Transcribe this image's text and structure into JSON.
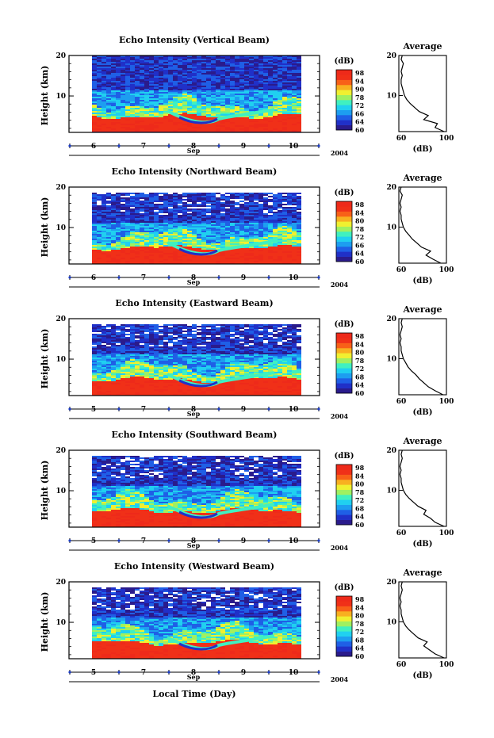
{
  "colors": {
    "palette": [
      "#2a1b8c",
      "#2030c8",
      "#1f5fe6",
      "#1d9ef0",
      "#20d0f0",
      "#40f0c0",
      "#a0f060",
      "#f0f030",
      "#f8b020",
      "#f86018",
      "#f03018",
      "#ee2a1a"
    ],
    "background_low": "#2a2a9a",
    "white": "#ffffff"
  },
  "icons": [
    "day-tick-marker-icon"
  ],
  "chart_data": [
    {
      "type": "heatmap",
      "title": "Echo Intensity (Vertical Beam)",
      "ylabel": "Height (km)",
      "yticks": [
        "20",
        "10"
      ],
      "ylim": [
        1,
        20
      ],
      "xticks": [
        "6",
        "7",
        "8",
        "9",
        "10"
      ],
      "xunit": "Sep",
      "year": "2004",
      "colorbar": {
        "unit": "(dB)",
        "labels": [
          "98",
          "94",
          "90",
          "78",
          "72",
          "66",
          "64",
          "60"
        ],
        "range": [
          60,
          98
        ]
      },
      "average": {
        "title": "Average",
        "xticks": [
          "60",
          "100"
        ],
        "xlabel": "(dB)",
        "yticks": [
          "20",
          "10"
        ],
        "profile": [
          [
            98,
            1
          ],
          [
            90,
            2
          ],
          [
            92,
            3
          ],
          [
            80,
            4
          ],
          [
            84,
            5
          ],
          [
            76,
            6
          ],
          [
            72,
            7
          ],
          [
            68,
            8
          ],
          [
            65,
            9
          ],
          [
            63,
            10
          ],
          [
            62,
            11
          ],
          [
            61,
            12
          ],
          [
            60,
            13
          ],
          [
            60,
            14
          ],
          [
            61,
            15
          ],
          [
            60,
            16
          ],
          [
            61,
            17
          ],
          [
            62,
            18
          ],
          [
            60,
            19
          ],
          [
            61,
            20
          ]
        ]
      }
    },
    {
      "type": "heatmap",
      "title": "Echo Intensity (Northward Beam)",
      "ylabel": "Height (km)",
      "yticks": [
        "20",
        "10"
      ],
      "ylim": [
        1,
        20
      ],
      "xticks": [
        "6",
        "7",
        "8",
        "9",
        "10"
      ],
      "xunit": "Sep",
      "year": "2004",
      "colorbar": {
        "unit": "(dB)",
        "labels": [
          "98",
          "84",
          "80",
          "78",
          "72",
          "66",
          "64",
          "60"
        ],
        "range": [
          60,
          98
        ]
      },
      "average": {
        "title": "Average",
        "xticks": [
          "60",
          "100"
        ],
        "xlabel": "(dB)",
        "yticks": [
          "20",
          "10"
        ],
        "profile": [
          [
            95,
            1
          ],
          [
            88,
            2
          ],
          [
            82,
            3
          ],
          [
            86,
            4
          ],
          [
            78,
            5
          ],
          [
            74,
            6
          ],
          [
            70,
            7
          ],
          [
            67,
            8
          ],
          [
            64,
            9
          ],
          [
            62,
            10
          ],
          [
            61,
            11
          ],
          [
            60,
            12
          ],
          [
            60,
            13
          ],
          [
            59,
            14
          ],
          [
            60,
            15
          ],
          [
            59,
            16
          ],
          [
            60,
            17
          ],
          [
            61,
            18
          ],
          [
            59,
            19
          ],
          [
            60,
            20
          ]
        ]
      }
    },
    {
      "type": "heatmap",
      "title": "Echo Intensity (Eastward Beam)",
      "ylabel": "Height (km)",
      "yticks": [
        "20",
        "10"
      ],
      "ylim": [
        1,
        20
      ],
      "xticks": [
        "5",
        "7",
        "8",
        "9",
        "10"
      ],
      "xunit": "Sep",
      "year": "2004",
      "colorbar": {
        "unit": "(dB)",
        "labels": [
          "98",
          "84",
          "80",
          "78",
          "72",
          "68",
          "64",
          "60"
        ],
        "range": [
          60,
          98
        ]
      },
      "average": {
        "title": "Average",
        "xticks": [
          "60",
          "100"
        ],
        "xlabel": "(dB)",
        "yticks": [
          "20",
          "10"
        ],
        "profile": [
          [
            97,
            1
          ],
          [
            90,
            2
          ],
          [
            84,
            3
          ],
          [
            80,
            4
          ],
          [
            76,
            5
          ],
          [
            73,
            6
          ],
          [
            69,
            7
          ],
          [
            66,
            8
          ],
          [
            64,
            9
          ],
          [
            62,
            10
          ],
          [
            61,
            11
          ],
          [
            60,
            12
          ],
          [
            60,
            13
          ],
          [
            59,
            14
          ],
          [
            60,
            15
          ],
          [
            59,
            16
          ],
          [
            60,
            17
          ],
          [
            61,
            18
          ],
          [
            60,
            19
          ],
          [
            61,
            20
          ]
        ]
      }
    },
    {
      "type": "heatmap",
      "title": "Echo Intensity (Southward Beam)",
      "ylabel": "Height (km)",
      "yticks": [
        "20",
        "10"
      ],
      "ylim": [
        1,
        20
      ],
      "xticks": [
        "5",
        "7",
        "8",
        "9",
        "10"
      ],
      "xunit": "Sep",
      "year": "2004",
      "colorbar": {
        "unit": "(dB)",
        "labels": [
          "98",
          "84",
          "80",
          "78",
          "72",
          "68",
          "64",
          "60"
        ],
        "range": [
          60,
          98
        ]
      },
      "average": {
        "title": "Average",
        "xticks": [
          "60",
          "100"
        ],
        "xlabel": "(dB)",
        "yticks": [
          "20",
          "10"
        ],
        "profile": [
          [
            98,
            1
          ],
          [
            90,
            2
          ],
          [
            86,
            3
          ],
          [
            80,
            4
          ],
          [
            82,
            5
          ],
          [
            75,
            6
          ],
          [
            71,
            7
          ],
          [
            67,
            8
          ],
          [
            64,
            9
          ],
          [
            62,
            10
          ],
          [
            61,
            11
          ],
          [
            60,
            12
          ],
          [
            60,
            13
          ],
          [
            59,
            14
          ],
          [
            60,
            15
          ],
          [
            59,
            16
          ],
          [
            60,
            17
          ],
          [
            61,
            18
          ],
          [
            60,
            19
          ],
          [
            61,
            20
          ]
        ]
      }
    },
    {
      "type": "heatmap",
      "title": "Echo Intensity (Westward Beam)",
      "ylabel": "Height (km)",
      "yticks": [
        "20",
        "10"
      ],
      "ylim": [
        1,
        20
      ],
      "xticks": [
        "5",
        "7",
        "8",
        "9",
        "10"
      ],
      "xunit": "Sep",
      "year": "2004",
      "colorbar": {
        "unit": "(dB)",
        "labels": [
          "98",
          "84",
          "80",
          "78",
          "72",
          "68",
          "64",
          "60"
        ],
        "range": [
          60,
          98
        ]
      },
      "average": {
        "title": "Average",
        "xticks": [
          "60",
          "100"
        ],
        "xlabel": "(dB)",
        "yticks": [
          "20",
          "10"
        ],
        "profile": [
          [
            98,
            1
          ],
          [
            90,
            2
          ],
          [
            85,
            3
          ],
          [
            80,
            4
          ],
          [
            83,
            5
          ],
          [
            75,
            6
          ],
          [
            71,
            7
          ],
          [
            67,
            8
          ],
          [
            64,
            9
          ],
          [
            62,
            10
          ],
          [
            61,
            11
          ],
          [
            60,
            12
          ],
          [
            60,
            13
          ],
          [
            59,
            14
          ],
          [
            60,
            15
          ],
          [
            59,
            16
          ],
          [
            60,
            17
          ],
          [
            61,
            18
          ],
          [
            60,
            19
          ],
          [
            61,
            20
          ]
        ]
      }
    }
  ],
  "footer": {
    "xlabel": "Local Time (Day)"
  }
}
